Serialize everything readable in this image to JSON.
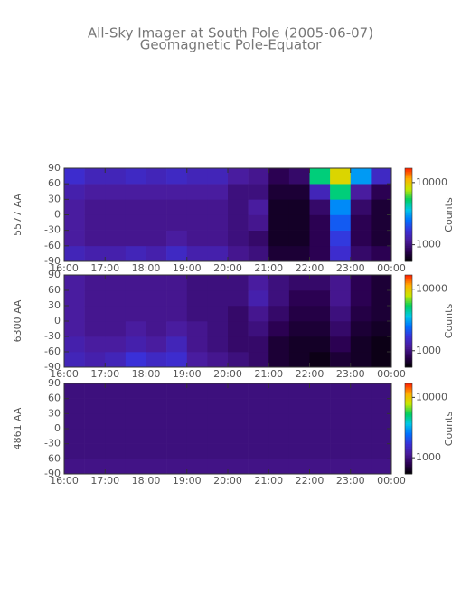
{
  "title": "All-Sky Imager at South Pole (2005-06-07)",
  "subtitle": "Geomagnetic Pole-Equator",
  "chart_data": [
    {
      "type": "heatmap",
      "ylabel": "5577 AA",
      "x_edges": [
        16,
        16.5,
        17,
        17.5,
        18,
        18.5,
        19,
        19.5,
        20,
        20.5,
        21,
        21.5,
        22,
        22.5,
        23,
        23.5,
        24
      ],
      "y_edges": [
        -90,
        -60,
        -30,
        0,
        30,
        60,
        90
      ],
      "z": [
        [
          1400,
          1300,
          1300,
          1400,
          1300,
          1500,
          1300,
          1300,
          1100,
          1000,
          700,
          700,
          800,
          1600,
          900,
          800
        ],
        [
          1200,
          1100,
          1100,
          1100,
          1100,
          1200,
          1100,
          1100,
          1000,
          900,
          650,
          650,
          800,
          1800,
          800,
          700
        ],
        [
          1200,
          1100,
          1100,
          1100,
          1100,
          1100,
          1100,
          1100,
          1000,
          1100,
          650,
          650,
          800,
          2200,
          800,
          700
        ],
        [
          1200,
          1100,
          1100,
          1100,
          1100,
          1100,
          1100,
          1100,
          1000,
          1200,
          650,
          650,
          900,
          2800,
          900,
          700
        ],
        [
          1300,
          1200,
          1200,
          1200,
          1200,
          1200,
          1200,
          1200,
          1000,
          1000,
          700,
          700,
          1400,
          5000,
          1200,
          800
        ],
        [
          1600,
          1400,
          1400,
          1500,
          1400,
          1500,
          1400,
          1400,
          1200,
          1100,
          800,
          900,
          5000,
          9000,
          3000,
          1500
        ]
      ],
      "xlim": [
        16,
        24
      ],
      "xticks": [
        {
          "value": 16,
          "label": "16:00"
        },
        {
          "value": 17,
          "label": "17:00"
        },
        {
          "value": 18,
          "label": "18:00"
        },
        {
          "value": 19,
          "label": "19:00"
        },
        {
          "value": 20,
          "label": "20:00"
        },
        {
          "value": 21,
          "label": "21:00"
        },
        {
          "value": 22,
          "label": "22:00"
        },
        {
          "value": 23,
          "label": "23:00"
        },
        {
          "value": 24,
          "label": "00:00"
        }
      ],
      "ylim": [
        -90,
        90
      ],
      "yticks": [
        -90,
        -60,
        -30,
        0,
        30,
        60,
        90
      ],
      "colorbar": {
        "label": "Counts",
        "log": true,
        "clim": [
          540,
          17000
        ],
        "ticks": [
          1000,
          10000
        ]
      },
      "colormap": [
        "#000000",
        "#2a0050",
        "#4a1a9a",
        "#3a30d8",
        "#0070ff",
        "#00c8e8",
        "#00d060",
        "#c8e800",
        "#ffb000",
        "#ff2000"
      ]
    },
    {
      "type": "heatmap",
      "ylabel": "6300 AA",
      "x_edges": [
        16,
        16.5,
        17,
        17.5,
        18,
        18.5,
        19,
        19.5,
        20,
        20.5,
        21,
        21.5,
        22,
        22.5,
        23,
        23.5,
        24
      ],
      "y_edges": [
        -90,
        -60,
        -30,
        0,
        30,
        60,
        90
      ],
      "z": [
        [
          1400,
          1300,
          1400,
          1700,
          1500,
          1600,
          1200,
          1100,
          1000,
          900,
          700,
          650,
          600,
          700,
          650,
          600
        ],
        [
          1300,
          1200,
          1200,
          1300,
          1200,
          1400,
          1100,
          1000,
          900,
          900,
          700,
          650,
          650,
          800,
          650,
          600
        ],
        [
          1200,
          1100,
          1100,
          1200,
          1100,
          1200,
          1100,
          1000,
          900,
          1000,
          800,
          700,
          700,
          900,
          700,
          650
        ],
        [
          1200,
          1100,
          1100,
          1100,
          1100,
          1100,
          1000,
          1000,
          900,
          1100,
          900,
          750,
          750,
          1000,
          750,
          700
        ],
        [
          1200,
          1100,
          1100,
          1100,
          1100,
          1100,
          1000,
          1000,
          1000,
          1300,
          1000,
          800,
          800,
          1100,
          800,
          700
        ],
        [
          1200,
          1100,
          1100,
          1100,
          1100,
          1100,
          1000,
          1000,
          1000,
          1200,
          1000,
          900,
          900,
          1100,
          800,
          700
        ]
      ],
      "xlim": [
        16,
        24
      ],
      "xticks": [
        {
          "value": 16,
          "label": "16:00"
        },
        {
          "value": 17,
          "label": "17:00"
        },
        {
          "value": 18,
          "label": "18:00"
        },
        {
          "value": 19,
          "label": "19:00"
        },
        {
          "value": 20,
          "label": "20:00"
        },
        {
          "value": 21,
          "label": "21:00"
        },
        {
          "value": 22,
          "label": "22:00"
        },
        {
          "value": 23,
          "label": "23:00"
        },
        {
          "value": 24,
          "label": "00:00"
        }
      ],
      "ylim": [
        -90,
        90
      ],
      "yticks": [
        -90,
        -60,
        -30,
        0,
        30,
        60,
        90
      ],
      "colorbar": {
        "label": "Counts",
        "log": true,
        "clim": [
          540,
          17000
        ],
        "ticks": [
          1000,
          10000
        ]
      },
      "colormap": [
        "#000000",
        "#2a0050",
        "#4a1a9a",
        "#3a30d8",
        "#0070ff",
        "#00c8e8",
        "#00d060",
        "#c8e800",
        "#ffb000",
        "#ff2000"
      ]
    },
    {
      "type": "heatmap",
      "ylabel": "4861 AA",
      "x_edges": [
        16,
        16.5,
        17,
        17.5,
        18,
        18.5,
        19,
        19.5,
        20,
        20.5,
        21,
        21.5,
        22,
        22.5,
        23,
        23.5,
        24
      ],
      "y_edges": [
        -90,
        -60,
        -30,
        0,
        30,
        60,
        90
      ],
      "z": [
        [
          1050,
          1050,
          1050,
          1050,
          1050,
          1050,
          1050,
          1050,
          1050,
          1050,
          1050,
          1050,
          1050,
          1050,
          1050,
          1050
        ],
        [
          1000,
          1000,
          1000,
          1000,
          1000,
          1000,
          1000,
          1000,
          1000,
          1000,
          1000,
          1000,
          1000,
          1000,
          1000,
          1000
        ],
        [
          1000,
          1000,
          1000,
          1000,
          1000,
          1000,
          1000,
          1000,
          1000,
          1000,
          1000,
          1000,
          1000,
          1000,
          1000,
          1000
        ],
        [
          1000,
          1000,
          1000,
          1000,
          1000,
          1000,
          1000,
          1000,
          1000,
          1000,
          1000,
          1000,
          1000,
          1000,
          1000,
          1000
        ],
        [
          1000,
          1000,
          1000,
          1000,
          1000,
          1000,
          1000,
          1000,
          1000,
          1000,
          1000,
          1000,
          1000,
          1000,
          1000,
          1000
        ],
        [
          1000,
          1000,
          1000,
          1000,
          1000,
          1000,
          1000,
          1000,
          1000,
          1000,
          1000,
          1000,
          1000,
          1000,
          1000,
          1000
        ]
      ],
      "xlim": [
        16,
        24
      ],
      "xticks": [
        {
          "value": 16,
          "label": "16:00"
        },
        {
          "value": 17,
          "label": "17:00"
        },
        {
          "value": 18,
          "label": "18:00"
        },
        {
          "value": 19,
          "label": "19:00"
        },
        {
          "value": 20,
          "label": "20:00"
        },
        {
          "value": 21,
          "label": "21:00"
        },
        {
          "value": 22,
          "label": "22:00"
        },
        {
          "value": 23,
          "label": "23:00"
        },
        {
          "value": 24,
          "label": "00:00"
        }
      ],
      "ylim": [
        -90,
        90
      ],
      "yticks": [
        -90,
        -60,
        -30,
        0,
        30,
        60,
        90
      ],
      "colorbar": {
        "label": "Counts",
        "log": true,
        "clim": [
          540,
          17000
        ],
        "ticks": [
          1000,
          10000
        ]
      },
      "colormap": [
        "#000000",
        "#2a0050",
        "#4a1a9a",
        "#3a30d8",
        "#0070ff",
        "#00c8e8",
        "#00d060",
        "#c8e800",
        "#ffb000",
        "#ff2000"
      ]
    }
  ]
}
